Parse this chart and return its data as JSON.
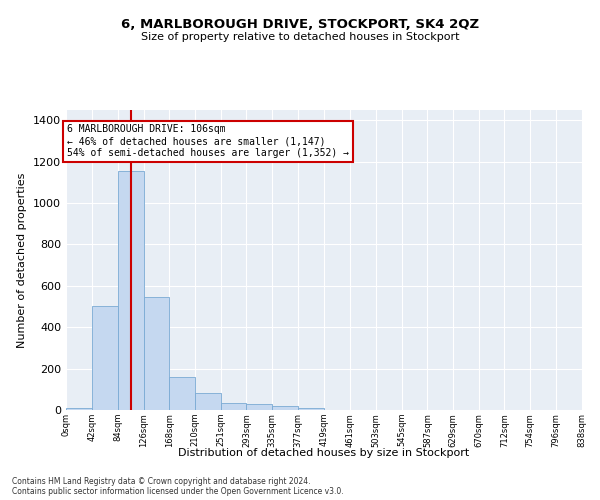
{
  "title": "6, MARLBOROUGH DRIVE, STOCKPORT, SK4 2QZ",
  "subtitle": "Size of property relative to detached houses in Stockport",
  "xlabel": "Distribution of detached houses by size in Stockport",
  "ylabel": "Number of detached properties",
  "bar_values": [
    10,
    505,
    1155,
    545,
    160,
    80,
    35,
    27,
    18,
    10,
    0,
    0,
    0,
    0,
    0,
    0,
    0,
    0,
    0,
    0
  ],
  "bin_edges": [
    0,
    42,
    84,
    126,
    168,
    210,
    251,
    293,
    335,
    377,
    419,
    461,
    503,
    545,
    587,
    629,
    670,
    712,
    754,
    796,
    838
  ],
  "tick_labels": [
    "0sqm",
    "42sqm",
    "84sqm",
    "126sqm",
    "168sqm",
    "210sqm",
    "251sqm",
    "293sqm",
    "335sqm",
    "377sqm",
    "419sqm",
    "461sqm",
    "503sqm",
    "545sqm",
    "587sqm",
    "629sqm",
    "670sqm",
    "712sqm",
    "754sqm",
    "796sqm",
    "838sqm"
  ],
  "bar_color": "#c5d8f0",
  "bar_edge_color": "#7aaad4",
  "vline_x": 106,
  "vline_color": "#cc0000",
  "ylim": [
    0,
    1450
  ],
  "yticks": [
    0,
    200,
    400,
    600,
    800,
    1000,
    1200,
    1400
  ],
  "annotation_text": "6 MARLBOROUGH DRIVE: 106sqm\n← 46% of detached houses are smaller (1,147)\n54% of semi-detached houses are larger (1,352) →",
  "annotation_box_color": "#cc0000",
  "footer_line1": "Contains HM Land Registry data © Crown copyright and database right 2024.",
  "footer_line2": "Contains public sector information licensed under the Open Government Licence v3.0.",
  "plot_bg_color": "#e8eef5",
  "grid_color": "#ffffff",
  "title_fontsize": 9.5,
  "subtitle_fontsize": 8,
  "ylabel_fontsize": 8,
  "xlabel_fontsize": 8,
  "ytick_fontsize": 8,
  "xtick_fontsize": 6,
  "annotation_fontsize": 7,
  "footer_fontsize": 5.5
}
